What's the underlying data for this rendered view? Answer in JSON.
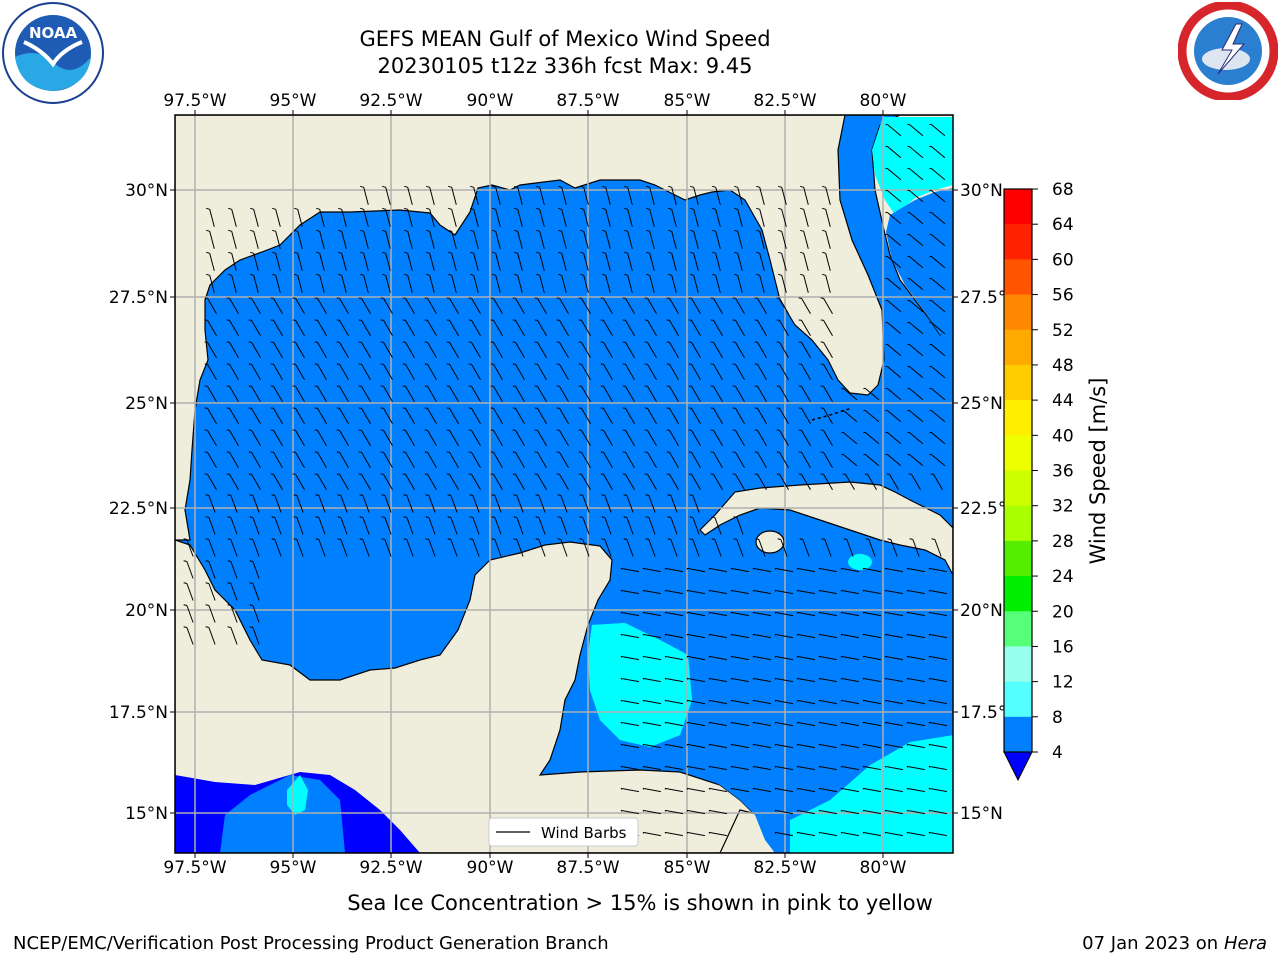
{
  "header": {
    "title_line1": "GEFS MEAN Gulf of Mexico Wind Speed",
    "title_line2": "20230105 t12z 336h fcst   Max: 9.45"
  },
  "logos": {
    "left_icon": "noaa-logo-icon",
    "right_icon": "nws-logo-icon"
  },
  "map": {
    "lon_ticks": [
      "97.5°W",
      "95°W",
      "92.5°W",
      "90°W",
      "87.5°W",
      "85°W",
      "82.5°W",
      "80°W"
    ],
    "lat_ticks_left": [
      "30°N",
      "27.5°N",
      "25°N",
      "22.5°N",
      "20°N",
      "17.5°N",
      "15°N"
    ],
    "lat_ticks_right": [
      "30°N",
      "27.5°",
      "25°N",
      "22.5°",
      "20°N",
      "17.5°",
      "15°N"
    ],
    "legend_label": "Wind Barbs",
    "land_color": "#efeedd",
    "ocean_colors": {
      "4_8": "#0080ff",
      "8_12": "#00ffff",
      "below_4": "#0000ff"
    }
  },
  "colorbar": {
    "label": "Wind Speed [m/s]",
    "ticks": [
      "68",
      "64",
      "60",
      "56",
      "52",
      "48",
      "44",
      "40",
      "36",
      "32",
      "28",
      "24",
      "20",
      "16",
      "12",
      "8",
      "4"
    ],
    "colors": [
      "#ff0000",
      "#ff2200",
      "#ff5500",
      "#ff8800",
      "#ffaa00",
      "#ffcc00",
      "#ffee00",
      "#ffff00",
      "#ddf000",
      "#bbff00",
      "#66ee22",
      "#22ff00",
      "#00ee00",
      "#55ff88",
      "#99ffee",
      "#55ffff",
      "#00ffff",
      "#0080ff",
      "#0000ff"
    ]
  },
  "footer": {
    "note": "Sea Ice Concentration > 15% is shown in pink to yellow",
    "credit": "NCEP/EMC/Verification Post Processing Product Generation Branch",
    "date": "07 Jan 2023 on",
    "host": "Hera"
  }
}
